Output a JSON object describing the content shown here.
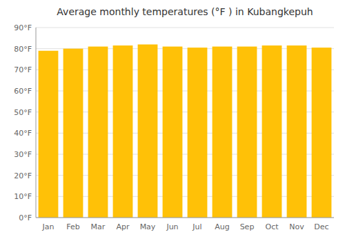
{
  "chart_data": {
    "type": "bar",
    "title": "Average monthly temperatures (°F ) in Kubangkepuh",
    "categories": [
      "Jan",
      "Feb",
      "Mar",
      "Apr",
      "May",
      "Jun",
      "Jul",
      "Aug",
      "Sep",
      "Oct",
      "Nov",
      "Dec"
    ],
    "values": [
      79.0,
      80.0,
      81.0,
      81.5,
      82.0,
      81.0,
      80.5,
      81.0,
      81.0,
      81.5,
      81.5,
      80.5
    ],
    "color": "#FFC107",
    "ylim": [
      0,
      90
    ],
    "yticks": [
      {
        "value": 0,
        "label": "0°F"
      },
      {
        "value": 10,
        "label": "10°F"
      },
      {
        "value": 20,
        "label": "20°F"
      },
      {
        "value": 30,
        "label": "30°F"
      },
      {
        "value": 40,
        "label": "40°F"
      },
      {
        "value": 50,
        "label": "50°F"
      },
      {
        "value": 60,
        "label": "60°F"
      },
      {
        "value": 70,
        "label": "70°F"
      },
      {
        "value": 80,
        "label": "80°F"
      },
      {
        "value": 90,
        "label": "90°F"
      }
    ],
    "grid": true
  }
}
